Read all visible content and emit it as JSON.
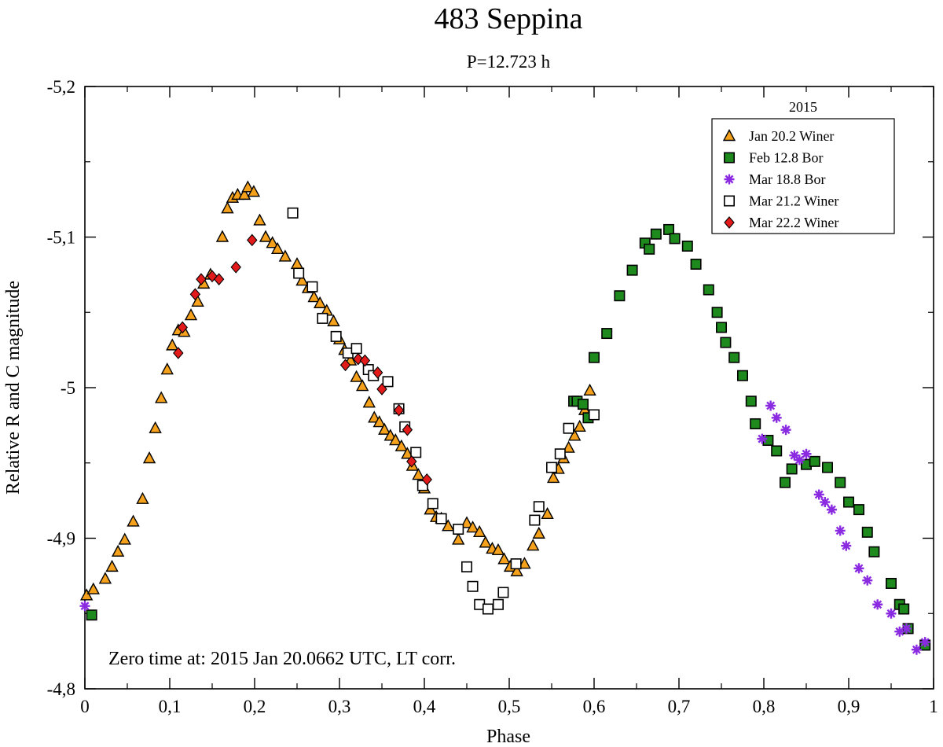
{
  "chart_data": {
    "type": "scatter",
    "title": "483 Seppina",
    "subtitle": "P=12.723 h",
    "xlabel": "Phase",
    "ylabel": "Relative R and C magnitude",
    "xlim": [
      0,
      1
    ],
    "ylim": [
      -4.8,
      -5.2
    ],
    "x_ticks": [
      0,
      0.1,
      0.2,
      0.3,
      0.4,
      0.5,
      0.6,
      0.7,
      0.8,
      0.9,
      1
    ],
    "x_tick_labels": [
      "0",
      "0,1",
      "0,2",
      "0,3",
      "0,4",
      "0,5",
      "0,6",
      "0,7",
      "0,8",
      "0,9",
      "1"
    ],
    "y_ticks": [
      -5.2,
      -5.1,
      -5.0,
      -4.9,
      -4.8
    ],
    "y_tick_labels": [
      "-5,2",
      "-5,1",
      "-5",
      "-4,9",
      "-4,8"
    ],
    "grid": false,
    "legend": {
      "title": "2015",
      "position": "top-right"
    },
    "annotation": "Zero time at: 2015 Jan 20.0662 UTC, LT corr.",
    "series": [
      {
        "name": "Jan 20.2 Winer",
        "marker": "triangle",
        "color": "#f5a11c",
        "points": [
          [
            0.002,
            -4.862
          ],
          [
            0.01,
            -4.866
          ],
          [
            0.024,
            -4.873
          ],
          [
            0.032,
            -4.881
          ],
          [
            0.039,
            -4.891
          ],
          [
            0.047,
            -4.899
          ],
          [
            0.057,
            -4.911
          ],
          [
            0.068,
            -4.926
          ],
          [
            0.076,
            -4.953
          ],
          [
            0.083,
            -4.973
          ],
          [
            0.09,
            -4.993
          ],
          [
            0.097,
            -5.012
          ],
          [
            0.103,
            -5.028
          ],
          [
            0.11,
            -5.038
          ],
          [
            0.117,
            -5.037
          ],
          [
            0.125,
            -5.048
          ],
          [
            0.133,
            -5.057
          ],
          [
            0.14,
            -5.069
          ],
          [
            0.148,
            -5.075
          ],
          [
            0.162,
            -5.1
          ],
          [
            0.168,
            -5.119
          ],
          [
            0.174,
            -5.126
          ],
          [
            0.18,
            -5.128
          ],
          [
            0.188,
            -5.128
          ],
          [
            0.192,
            -5.133
          ],
          [
            0.199,
            -5.13
          ],
          [
            0.206,
            -5.111
          ],
          [
            0.213,
            -5.1
          ],
          [
            0.221,
            -5.096
          ],
          [
            0.227,
            -5.092
          ],
          [
            0.236,
            -5.087
          ],
          [
            0.25,
            -5.082
          ],
          [
            0.256,
            -5.071
          ],
          [
            0.263,
            -5.066
          ],
          [
            0.27,
            -5.06
          ],
          [
            0.277,
            -5.056
          ],
          [
            0.285,
            -5.051
          ],
          [
            0.293,
            -5.044
          ],
          [
            0.3,
            -5.032
          ],
          [
            0.306,
            -5.025
          ],
          [
            0.313,
            -5.018
          ],
          [
            0.32,
            -5.007
          ],
          [
            0.327,
            -5.001
          ],
          [
            0.335,
            -4.99
          ],
          [
            0.341,
            -4.98
          ],
          [
            0.347,
            -4.977
          ],
          [
            0.353,
            -4.972
          ],
          [
            0.36,
            -4.968
          ],
          [
            0.366,
            -4.965
          ],
          [
            0.373,
            -4.961
          ],
          [
            0.38,
            -4.956
          ],
          [
            0.386,
            -4.948
          ],
          [
            0.393,
            -4.942
          ],
          [
            0.4,
            -4.933
          ],
          [
            0.407,
            -4.919
          ],
          [
            0.414,
            -4.914
          ],
          [
            0.42,
            -4.913
          ],
          [
            0.428,
            -4.908
          ],
          [
            0.44,
            -4.899
          ],
          [
            0.45,
            -4.91
          ],
          [
            0.457,
            -4.907
          ],
          [
            0.465,
            -4.904
          ],
          [
            0.472,
            -4.897
          ],
          [
            0.48,
            -4.893
          ],
          [
            0.487,
            -4.892
          ],
          [
            0.494,
            -4.886
          ],
          [
            0.501,
            -4.881
          ],
          [
            0.509,
            -4.878
          ],
          [
            0.518,
            -4.883
          ],
          [
            0.528,
            -4.895
          ],
          [
            0.535,
            -4.903
          ],
          [
            0.545,
            -4.916
          ],
          [
            0.552,
            -4.94
          ],
          [
            0.558,
            -4.946
          ],
          [
            0.564,
            -4.953
          ],
          [
            0.57,
            -4.96
          ],
          [
            0.577,
            -4.968
          ],
          [
            0.583,
            -4.974
          ],
          [
            0.589,
            -4.985
          ],
          [
            0.595,
            -4.998
          ]
        ]
      },
      {
        "name": "Feb 12.8 Bor",
        "marker": "square",
        "color": "#1e8a1e",
        "points": [
          [
            0.008,
            -4.849
          ],
          [
            0.576,
            -4.991
          ],
          [
            0.58,
            -4.991
          ],
          [
            0.587,
            -4.989
          ],
          [
            0.593,
            -4.98
          ],
          [
            0.6,
            -5.02
          ],
          [
            0.615,
            -5.036
          ],
          [
            0.63,
            -5.061
          ],
          [
            0.645,
            -5.078
          ],
          [
            0.66,
            -5.096
          ],
          [
            0.665,
            -5.092
          ],
          [
            0.673,
            -5.102
          ],
          [
            0.688,
            -5.105
          ],
          [
            0.695,
            -5.099
          ],
          [
            0.71,
            -5.094
          ],
          [
            0.72,
            -5.082
          ],
          [
            0.735,
            -5.065
          ],
          [
            0.745,
            -5.05
          ],
          [
            0.75,
            -5.04
          ],
          [
            0.755,
            -5.03
          ],
          [
            0.765,
            -5.02
          ],
          [
            0.775,
            -5.008
          ],
          [
            0.785,
            -4.991
          ],
          [
            0.79,
            -4.976
          ],
          [
            0.805,
            -4.965
          ],
          [
            0.815,
            -4.958
          ],
          [
            0.825,
            -4.937
          ],
          [
            0.833,
            -4.946
          ],
          [
            0.85,
            -4.949
          ],
          [
            0.86,
            -4.951
          ],
          [
            0.875,
            -4.947
          ],
          [
            0.89,
            -4.937
          ],
          [
            0.9,
            -4.924
          ],
          [
            0.912,
            -4.919
          ],
          [
            0.922,
            -4.904
          ],
          [
            0.93,
            -4.891
          ],
          [
            0.95,
            -4.87
          ],
          [
            0.96,
            -4.856
          ],
          [
            0.965,
            -4.853
          ],
          [
            0.97,
            -4.84
          ],
          [
            0.99,
            -4.829
          ]
        ]
      },
      {
        "name": "Mar 18.8 Bor",
        "marker": "asterisk",
        "color": "#8a2be2",
        "points": [
          [
            0.0,
            -4.855
          ],
          [
            0.798,
            -4.966
          ],
          [
            0.808,
            -4.988
          ],
          [
            0.815,
            -4.98
          ],
          [
            0.826,
            -4.972
          ],
          [
            0.836,
            -4.955
          ],
          [
            0.842,
            -4.952
          ],
          [
            0.85,
            -4.956
          ],
          [
            0.865,
            -4.929
          ],
          [
            0.872,
            -4.924
          ],
          [
            0.88,
            -4.919
          ],
          [
            0.89,
            -4.905
          ],
          [
            0.897,
            -4.895
          ],
          [
            0.912,
            -4.88
          ],
          [
            0.922,
            -4.872
          ],
          [
            0.934,
            -4.856
          ],
          [
            0.95,
            -4.85
          ],
          [
            0.96,
            -4.838
          ],
          [
            0.968,
            -4.84
          ],
          [
            0.98,
            -4.826
          ],
          [
            0.99,
            -4.831
          ]
        ]
      },
      {
        "name": "Mar 21.2 Winer",
        "marker": "square-open",
        "color": "#ffffff",
        "points": [
          [
            0.245,
            -5.116
          ],
          [
            0.252,
            -5.076
          ],
          [
            0.268,
            -5.067
          ],
          [
            0.28,
            -5.046
          ],
          [
            0.296,
            -5.034
          ],
          [
            0.31,
            -5.023
          ],
          [
            0.32,
            -5.026
          ],
          [
            0.334,
            -5.012
          ],
          [
            0.34,
            -5.008
          ],
          [
            0.357,
            -5.004
          ],
          [
            0.37,
            -4.986
          ],
          [
            0.377,
            -4.974
          ],
          [
            0.39,
            -4.957
          ],
          [
            0.398,
            -4.935
          ],
          [
            0.41,
            -4.923
          ],
          [
            0.42,
            -4.913
          ],
          [
            0.44,
            -4.906
          ],
          [
            0.45,
            -4.881
          ],
          [
            0.457,
            -4.868
          ],
          [
            0.465,
            -4.856
          ],
          [
            0.475,
            -4.853
          ],
          [
            0.487,
            -4.856
          ],
          [
            0.493,
            -4.864
          ],
          [
            0.508,
            -4.883
          ],
          [
            0.53,
            -4.912
          ],
          [
            0.535,
            -4.921
          ],
          [
            0.55,
            -4.947
          ],
          [
            0.56,
            -4.956
          ],
          [
            0.57,
            -4.973
          ],
          [
            0.6,
            -4.982
          ]
        ]
      },
      {
        "name": "Mar 22.2 Winer",
        "marker": "diamond",
        "color": "#e31a1a",
        "points": [
          [
            0.11,
            -5.023
          ],
          [
            0.115,
            -5.04
          ],
          [
            0.13,
            -5.062
          ],
          [
            0.137,
            -5.072
          ],
          [
            0.15,
            -5.074
          ],
          [
            0.158,
            -5.072
          ],
          [
            0.178,
            -5.08
          ],
          [
            0.197,
            -5.098
          ],
          [
            0.307,
            -5.015
          ],
          [
            0.322,
            -5.019
          ],
          [
            0.33,
            -5.018
          ],
          [
            0.345,
            -5.01
          ],
          [
            0.35,
            -4.999
          ],
          [
            0.37,
            -4.985
          ],
          [
            0.38,
            -4.972
          ],
          [
            0.385,
            -4.951
          ],
          [
            0.403,
            -4.939
          ]
        ]
      }
    ]
  }
}
